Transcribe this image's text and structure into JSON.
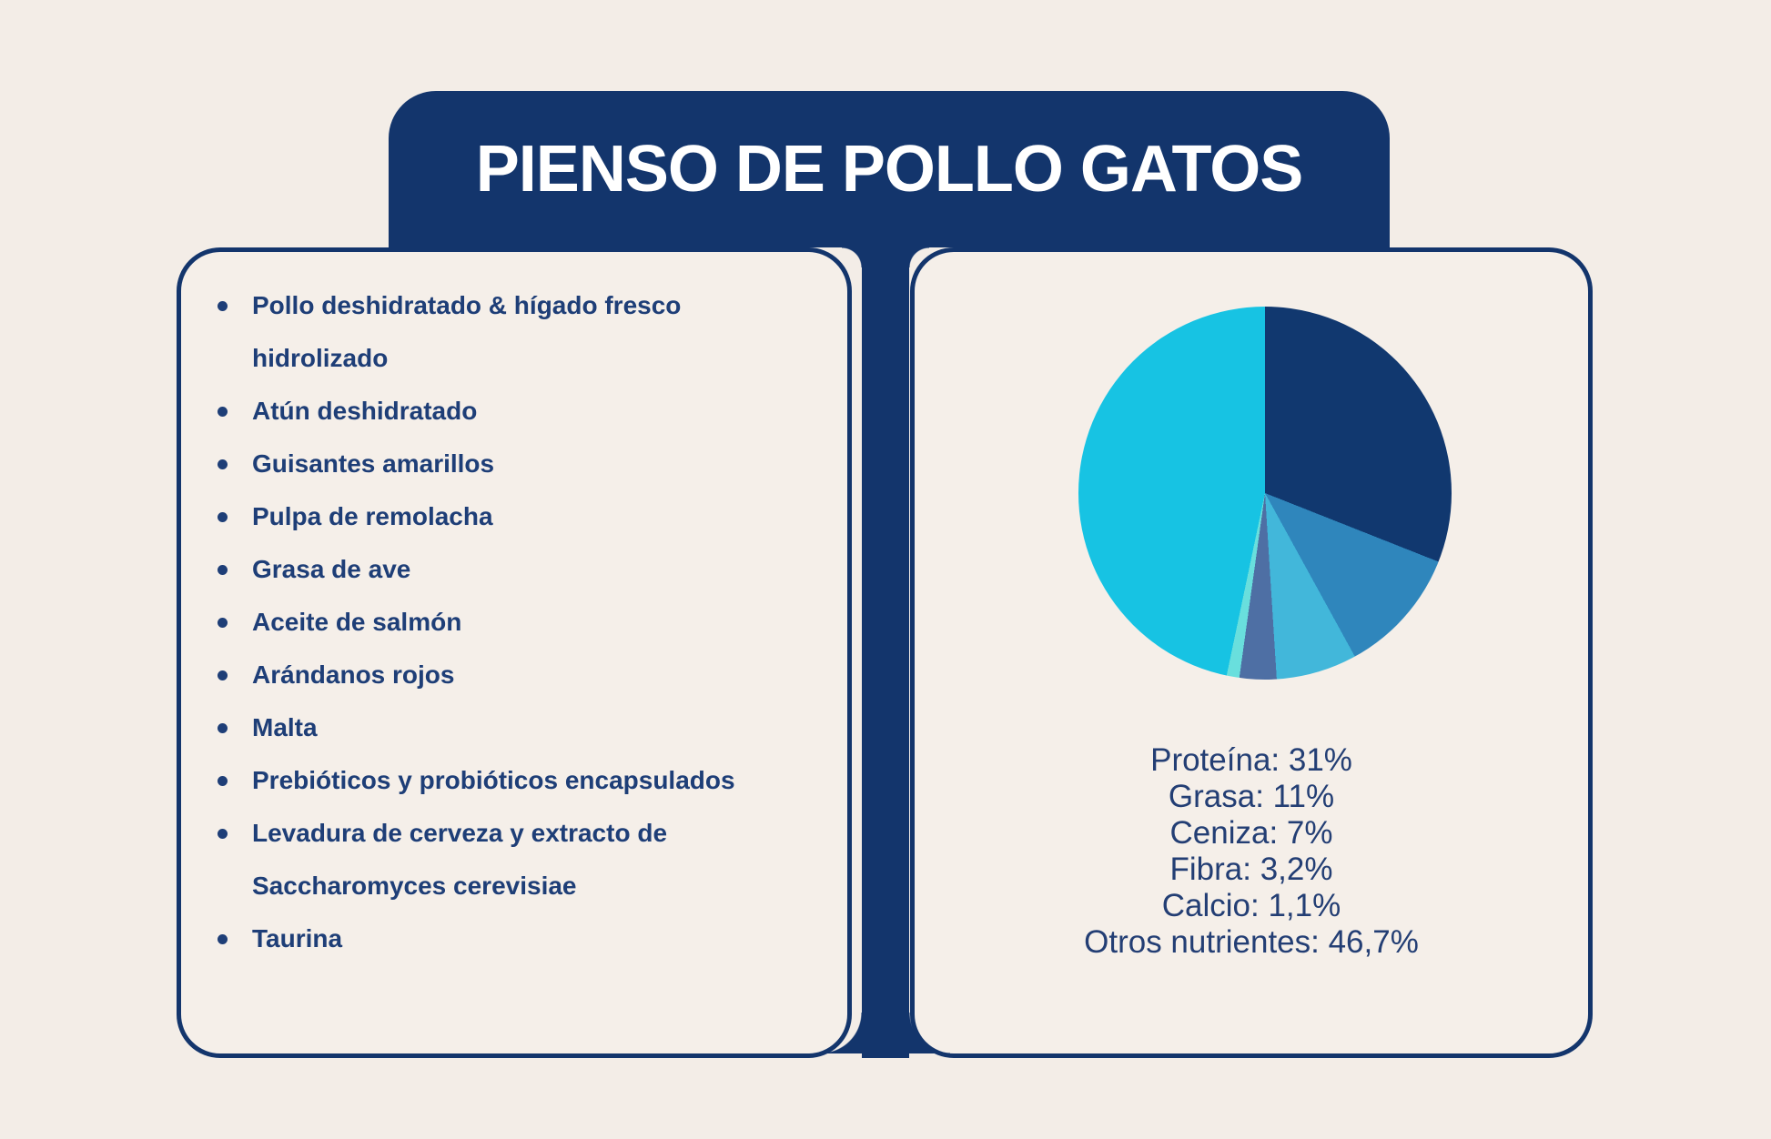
{
  "page": {
    "background_color": "#f3ede7",
    "accent_navy": "#13356c"
  },
  "title": "PIENSO DE POLLO GATOS",
  "ingredients": {
    "items": [
      "Pollo deshidratado & hígado fresco hidrolizado",
      "Atún deshidratado",
      "Guisantes amarillos",
      "Pulpa de remolacha",
      "Grasa de ave",
      "Aceite de salmón",
      "Arándanos rojos",
      "Malta",
      "Prebióticos y probióticos encapsulados",
      "Levadura de cerveza y extracto de Saccharomyces cerevisiae",
      "Taurina"
    ]
  },
  "chart_data": {
    "type": "pie",
    "labels": [
      "Proteína",
      "Grasa",
      "Ceniza",
      "Fibra",
      "Calcio",
      "Otros nutrientes"
    ],
    "values": [
      31,
      11,
      7,
      3.2,
      1.1,
      46.7
    ],
    "value_labels": [
      "31%",
      "11%",
      "7%",
      "3,2%",
      "1,1%",
      "46,7%"
    ],
    "colors": [
      "#11386f",
      "#2f86bc",
      "#42b7da",
      "#4e6fa4",
      "#69dfdd",
      "#17c3e3"
    ],
    "start_angle_deg": 0,
    "direction": "clockwise",
    "legend_position": "below",
    "legend_lines": [
      "Proteína: 31%",
      "Grasa: 11%",
      "Ceniza: 7%",
      "Fibra: 3,2%",
      "Calcio: 1,1%",
      "Otros nutrientes: 46,7%"
    ]
  }
}
